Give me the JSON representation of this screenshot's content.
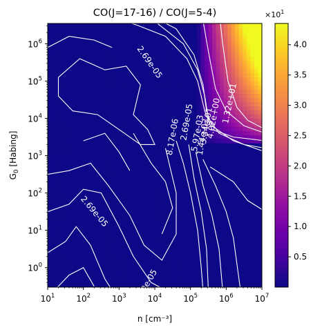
{
  "chart_data": {
    "type": "heatmap",
    "title": "CO(J=17-16) / CO(J=5-4)",
    "xlabel": "n [cm$^{-3}$]",
    "xlabel_display": "n [cm⁻³]",
    "ylabel": "G$_0$ [Habing]",
    "ylabel_main": "G",
    "ylabel_sub": "0",
    "ylabel_rest": " [Habing]",
    "x_scale": "log",
    "y_scale": "log",
    "xlim": [
      10,
      10000000
    ],
    "ylim": [
      0.3,
      3500000
    ],
    "x_ticks": [
      {
        "value": 10,
        "base": "10",
        "exp": "1"
      },
      {
        "value": 100,
        "base": "10",
        "exp": "2"
      },
      {
        "value": 1000,
        "base": "10",
        "exp": "3"
      },
      {
        "value": 10000,
        "base": "10",
        "exp": "4"
      },
      {
        "value": 100000,
        "base": "10",
        "exp": "5"
      },
      {
        "value": 1000000,
        "base": "10",
        "exp": "6"
      },
      {
        "value": 10000000,
        "base": "10",
        "exp": "7"
      }
    ],
    "y_ticks": [
      {
        "value": 1,
        "base": "10",
        "exp": "0"
      },
      {
        "value": 10,
        "base": "10",
        "exp": "1"
      },
      {
        "value": 100,
        "base": "10",
        "exp": "2"
      },
      {
        "value": 1000,
        "base": "10",
        "exp": "3"
      },
      {
        "value": 10000,
        "base": "10",
        "exp": "4"
      },
      {
        "value": 100000,
        "base": "10",
        "exp": "5"
      },
      {
        "value": 1000000,
        "base": "10",
        "exp": "6"
      }
    ],
    "colormap": "plasma",
    "colorbar": {
      "multiplier_base": "×10",
      "multiplier_exp": "1",
      "vmin": 0.0,
      "vmax": 4.35,
      "ticks": [
        {
          "value": 0.5,
          "label": "0.5"
        },
        {
          "value": 1.0,
          "label": "1.0"
        },
        {
          "value": 1.5,
          "label": "1.5"
        },
        {
          "value": 2.0,
          "label": "2.0"
        },
        {
          "value": 2.5,
          "label": "2.5"
        },
        {
          "value": 3.0,
          "label": "3.0"
        },
        {
          "value": 3.5,
          "label": "3.5"
        },
        {
          "value": 4.0,
          "label": "4.0"
        }
      ]
    },
    "contour_labels": [
      {
        "text": "2.69e-05",
        "logn": 3.85,
        "logg": 5.5,
        "rot": 55
      },
      {
        "text": "8.17e-06",
        "logn": 4.5,
        "logg": 3.5,
        "rot": -80
      },
      {
        "text": "2.69e-05",
        "logn": 2.3,
        "logg": 1.5,
        "rot": 50
      },
      {
        "text": "2.69e-05",
        "logn": 4.9,
        "logg": 3.9,
        "rot": -80
      },
      {
        "text": "1.32e+01",
        "logn": 6.1,
        "logg": 4.4,
        "rot": -78
      },
      {
        "text": "4.02e+00",
        "logn": 5.65,
        "logg": 4.0,
        "rot": -80
      },
      {
        "text": "3.34e-01",
        "logn": 5.45,
        "logg": 3.8,
        "rot": -80
      },
      {
        "text": "5.97e-03",
        "logn": 5.2,
        "logg": 3.6,
        "rot": -80
      },
      {
        "text": "1.44e-03",
        "logn": 5.35,
        "logg": 3.5,
        "rot": -80
      },
      {
        "text": "2.69e-05",
        "logn": 3.75,
        "logg": -0.5,
        "rot": -60
      }
    ]
  }
}
